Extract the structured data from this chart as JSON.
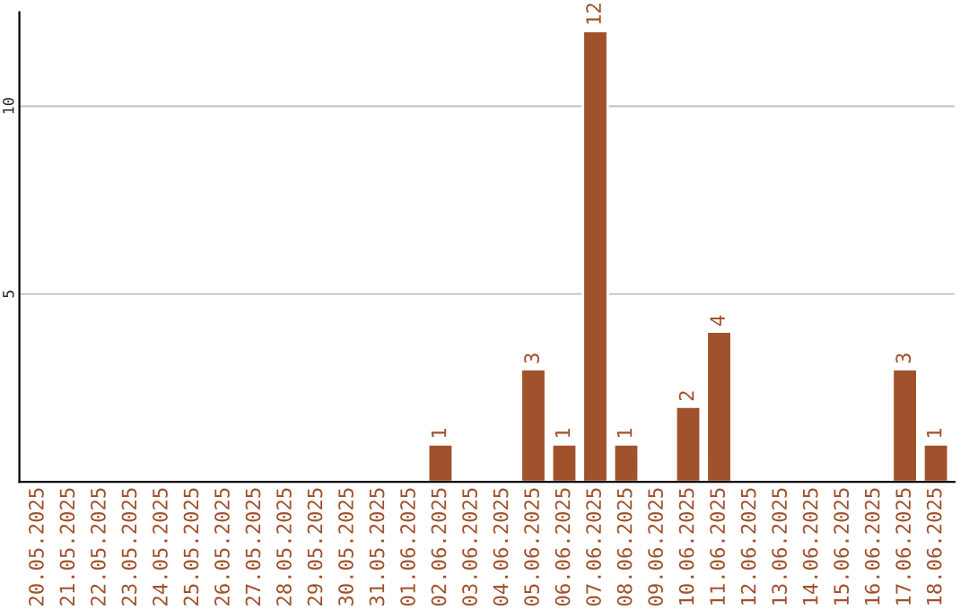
{
  "chart_data": {
    "type": "bar",
    "categories": [
      "20.05.2025",
      "21.05.2025",
      "22.05.2025",
      "23.05.2025",
      "24.05.2025",
      "25.05.2025",
      "26.05.2025",
      "27.05.2025",
      "28.05.2025",
      "29.05.2025",
      "30.05.2025",
      "31.05.2025",
      "01.06.2025",
      "02.06.2025",
      "03.06.2025",
      "04.06.2025",
      "05.06.2025",
      "06.06.2025",
      "07.06.2025",
      "08.06.2025",
      "09.06.2025",
      "10.06.2025",
      "11.06.2025",
      "12.06.2025",
      "13.06.2025",
      "14.06.2025",
      "15.06.2025",
      "16.06.2025",
      "17.06.2025",
      "18.06.2025"
    ],
    "values": [
      null,
      null,
      null,
      null,
      null,
      null,
      null,
      null,
      null,
      null,
      null,
      null,
      null,
      1,
      null,
      null,
      3,
      1,
      12,
      1,
      null,
      2,
      4,
      null,
      null,
      null,
      null,
      null,
      3,
      1
    ],
    "value_labels": [
      null,
      null,
      null,
      null,
      null,
      null,
      null,
      null,
      null,
      null,
      null,
      null,
      null,
      "1",
      null,
      null,
      "3",
      "1",
      "12",
      "1",
      null,
      "2",
      "4",
      null,
      null,
      null,
      null,
      null,
      "3",
      "1"
    ],
    "color": "#a0522d",
    "ylim": [
      0,
      12.5
    ],
    "yticks": [
      5,
      10
    ],
    "grid": "y",
    "legend": false
  }
}
